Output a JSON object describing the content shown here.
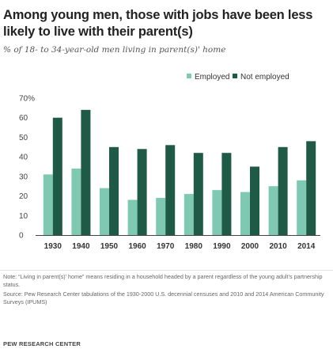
{
  "title": "Among young men, those with jobs have been less likely to live with their parent(s)",
  "subtitle": "% of 18- to 34-year-old men living in parent(s)' home",
  "note": "Note: “Living in parent(s)’ home” means residing in a household headed by a parent regardless of the young adult’s partnership status.",
  "source": "Source: Pew Research Center tabulations of the 1930-2000 U.S. decennial censuses and 2010 and 2014 American Community Surveys (IPUMS)",
  "footer": "PEW RESEARCH CENTER",
  "chart_data": {
    "type": "bar",
    "categories": [
      "1930",
      "1940",
      "1950",
      "1960",
      "1970",
      "1980",
      "1990",
      "2000",
      "2010",
      "2014"
    ],
    "series": [
      {
        "name": "Employed",
        "color": "#7fc8b1",
        "values": [
          31,
          34,
          24,
          18,
          19,
          21,
          23,
          22,
          25,
          28
        ]
      },
      {
        "name": "Not employed",
        "color": "#1e5a46",
        "values": [
          60,
          64,
          45,
          44,
          46,
          42,
          42,
          35,
          45,
          48
        ]
      }
    ],
    "yticks": [
      "0",
      "10",
      "20",
      "30",
      "40",
      "50",
      "60",
      "70%"
    ],
    "ylim": [
      0,
      70
    ],
    "legend_position": "top-right",
    "grid": false
  }
}
